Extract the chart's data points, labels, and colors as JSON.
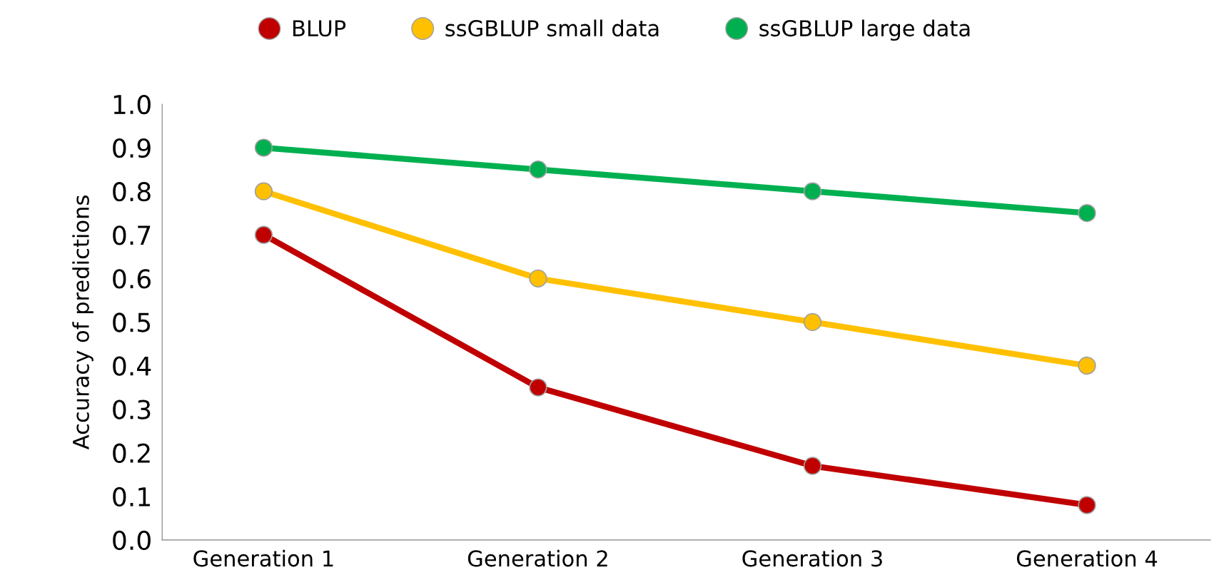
{
  "chart_data": {
    "type": "line",
    "ylabel": "Accuracy of predictions",
    "categories": [
      "Generation 1",
      "Generation 2",
      "Generation 3",
      "Generation 4"
    ],
    "series": [
      {
        "name": "BLUP",
        "color": "#c00000",
        "values": [
          0.7,
          0.35,
          0.17,
          0.08
        ]
      },
      {
        "name": "ssGBLUP small data",
        "color": "#ffc000",
        "values": [
          0.8,
          0.6,
          0.5,
          0.4
        ]
      },
      {
        "name": "ssGBLUP large data",
        "color": "#00b050",
        "values": [
          0.9,
          0.85,
          0.8,
          0.75
        ]
      }
    ],
    "ylim": [
      0.0,
      1.0
    ],
    "yticks": [
      {
        "value": 0.0,
        "label": "0.0"
      },
      {
        "value": 0.1,
        "label": "0.1"
      },
      {
        "value": 0.2,
        "label": "0.2"
      },
      {
        "value": 0.3,
        "label": "0.3"
      },
      {
        "value": 0.4,
        "label": "0.4"
      },
      {
        "value": 0.5,
        "label": "0.5"
      },
      {
        "value": 0.6,
        "label": "0.6"
      },
      {
        "value": 0.7,
        "label": "0.7"
      },
      {
        "value": 0.8,
        "label": "0.8"
      },
      {
        "value": 0.9,
        "label": "0.9"
      },
      {
        "value": 1.0,
        "label": "1.0"
      }
    ],
    "grid": false,
    "legend": "top",
    "marker": "circle",
    "line_style": "solid"
  }
}
